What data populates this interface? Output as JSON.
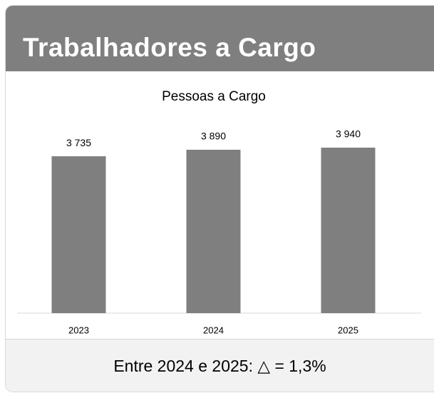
{
  "header": {
    "title": "Trabalhadores a Cargo"
  },
  "chart_data": {
    "type": "bar",
    "title": "Pessoas a Cargo",
    "categories": [
      "2023",
      "2024",
      "2025"
    ],
    "values": [
      3735,
      3890,
      3940
    ],
    "value_labels": [
      "3 735",
      "3 890",
      "3 940"
    ],
    "color": "#7f7f7f"
  },
  "footer": {
    "text": "Entre 2024 e 2025: △ = 1,3%"
  }
}
